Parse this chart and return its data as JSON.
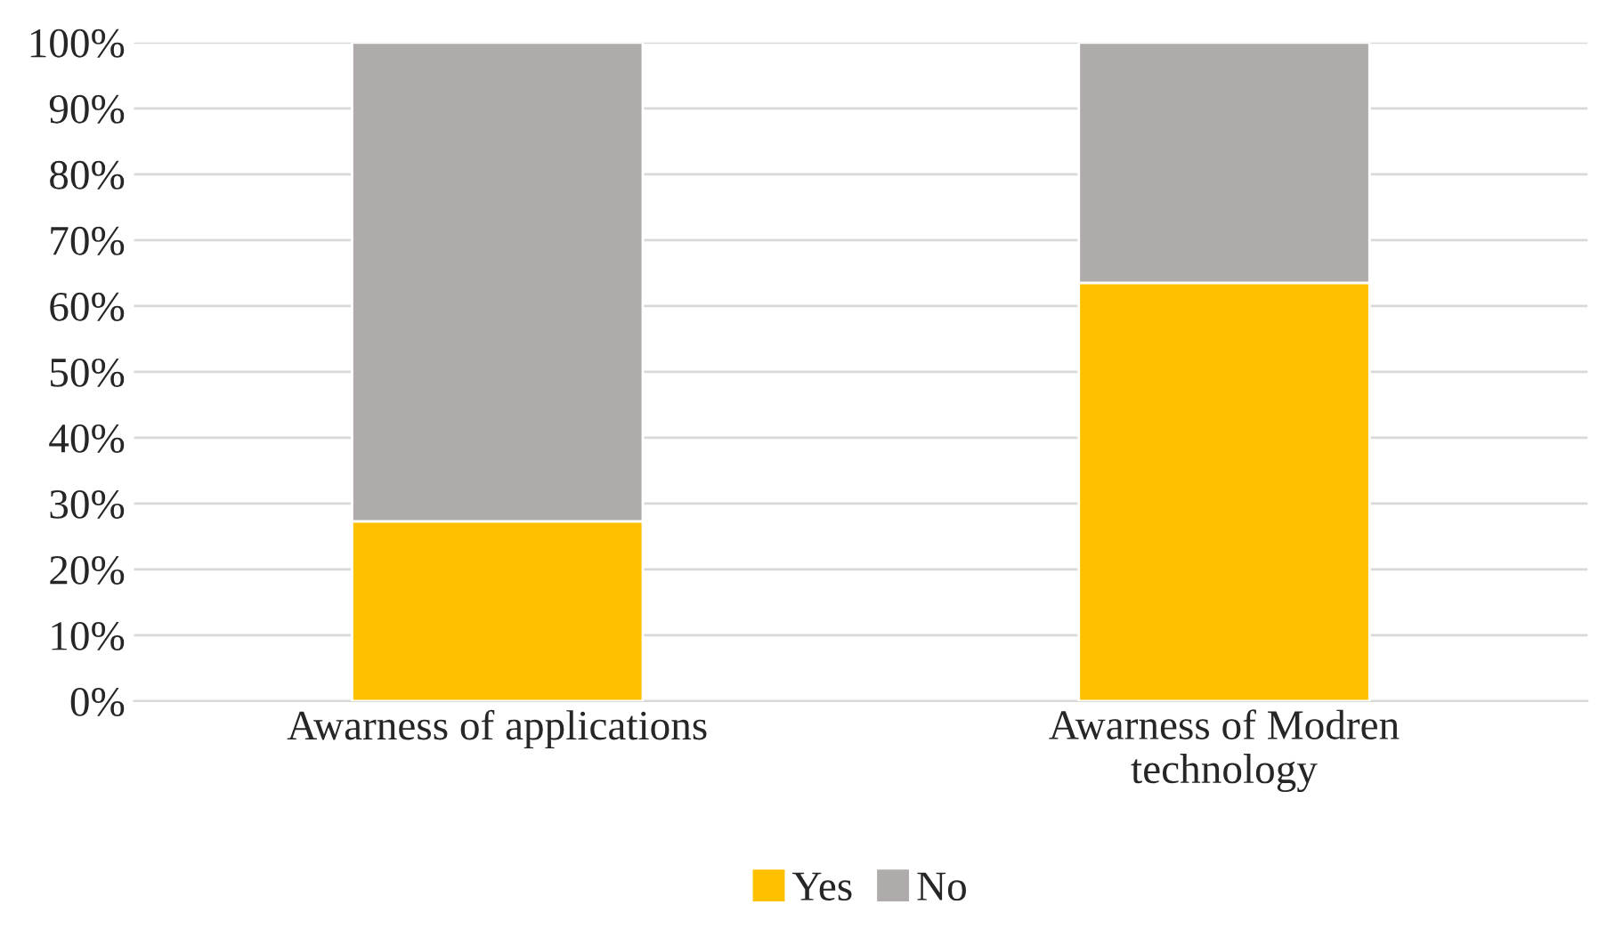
{
  "chart_data": {
    "type": "bar",
    "stacked": true,
    "categories": [
      "Awarness of applications",
      "Awarness of Modren\ntechnology"
    ],
    "series": [
      {
        "name": "Yes",
        "color": "#ffc000",
        "values": [
          27.3,
          63.5
        ]
      },
      {
        "name": "No",
        "color": "#afabab",
        "values": [
          72.7,
          36.5
        ]
      }
    ],
    "ylim": [
      0,
      100
    ],
    "yticks": [
      {
        "value": 0,
        "label": "0%"
      },
      {
        "value": 10,
        "label": "10%"
      },
      {
        "value": 20,
        "label": "20%"
      },
      {
        "value": 30,
        "label": "30%"
      },
      {
        "value": 40,
        "label": "40%"
      },
      {
        "value": 50,
        "label": "50%"
      },
      {
        "value": 60,
        "label": "60%"
      },
      {
        "value": 70,
        "label": "70%"
      },
      {
        "value": 80,
        "label": "80%"
      },
      {
        "value": 90,
        "label": "90%"
      },
      {
        "value": 100,
        "label": "100%"
      }
    ],
    "grid": "y",
    "legend": "bottom"
  }
}
